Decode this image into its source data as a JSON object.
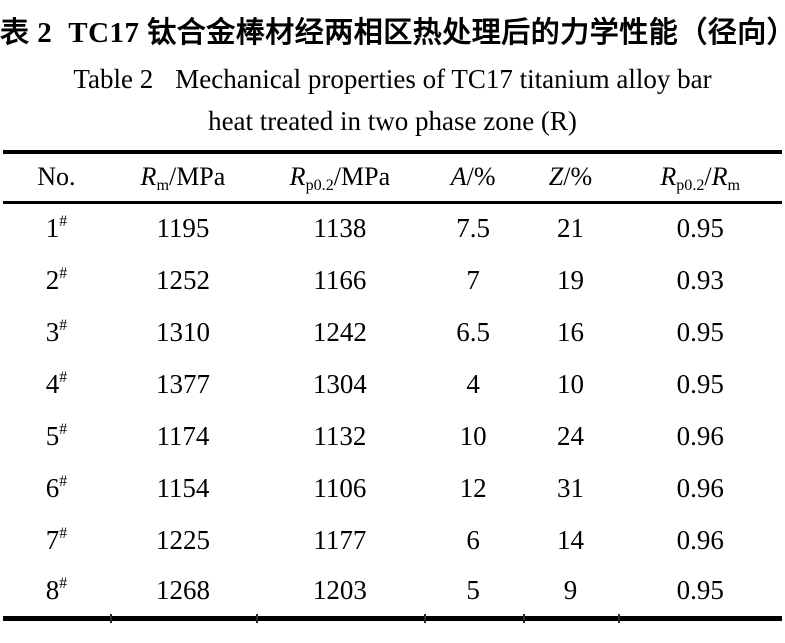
{
  "page": {
    "background_color": "#ffffff",
    "text_color": "#000000"
  },
  "caption": {
    "cn_label": "表 2",
    "cn_text": "TC17 钛合金棒材经两相区热处理后的力学性能（径向）",
    "en_label": "Table 2",
    "en_line1": "Mechanical properties of TC17 titanium alloy bar",
    "en_line2": "heat treated in two phase zone (R)"
  },
  "table": {
    "columns": [
      {
        "label": "No."
      },
      {
        "symbol": "R",
        "sub": "m",
        "suffix": "/MPa"
      },
      {
        "symbol": "R",
        "sub": "p0.2",
        "suffix": "/MPa"
      },
      {
        "symbol": "A",
        "suffix": "/%"
      },
      {
        "symbol": "Z",
        "suffix": "/%"
      },
      {
        "symbol": "R",
        "sub": "p0.2",
        "sep": "/",
        "symbol2": "R",
        "sub2": "m"
      }
    ],
    "rows": [
      {
        "no": "1",
        "mark": "#",
        "rm": "1195",
        "rp02": "1138",
        "a": "7.5",
        "z": "21",
        "ratio": "0.95"
      },
      {
        "no": "2",
        "mark": "#",
        "rm": "1252",
        "rp02": "1166",
        "a": "7",
        "z": "19",
        "ratio": "0.93"
      },
      {
        "no": "3",
        "mark": "#",
        "rm": "1310",
        "rp02": "1242",
        "a": "6.5",
        "z": "16",
        "ratio": "0.95"
      },
      {
        "no": "4",
        "mark": "#",
        "rm": "1377",
        "rp02": "1304",
        "a": "4",
        "z": "10",
        "ratio": "0.95"
      },
      {
        "no": "5",
        "mark": "#",
        "rm": "1174",
        "rp02": "1132",
        "a": "10",
        "z": "24",
        "ratio": "0.96"
      },
      {
        "no": "6",
        "mark": "#",
        "rm": "1154",
        "rp02": "1106",
        "a": "12",
        "z": "31",
        "ratio": "0.96"
      },
      {
        "no": "7",
        "mark": "#",
        "rm": "1225",
        "rp02": "1177",
        "a": "6",
        "z": "14",
        "ratio": "0.96"
      },
      {
        "no": "8",
        "mark": "#",
        "rm": "1268",
        "rp02": "1203",
        "a": "5",
        "z": "9",
        "ratio": "0.95"
      }
    ]
  },
  "chart_data": {
    "type": "table",
    "title": "Table 2 Mechanical properties of TC17 titanium alloy bar heat treated in two phase zone (R)",
    "title_cn": "表 2 TC17 钛合金棒材经两相区热处理后的力学性能（径向）",
    "columns": [
      "No.",
      "Rm/MPa",
      "Rp0.2/MPa",
      "A/%",
      "Z/%",
      "Rp0.2/Rm"
    ],
    "rows": [
      [
        "1#",
        1195,
        1138,
        7.5,
        21,
        0.95
      ],
      [
        "2#",
        1252,
        1166,
        7,
        19,
        0.93
      ],
      [
        "3#",
        1310,
        1242,
        6.5,
        16,
        0.95
      ],
      [
        "4#",
        1377,
        1304,
        4,
        10,
        0.95
      ],
      [
        "5#",
        1174,
        1132,
        10,
        24,
        0.96
      ],
      [
        "6#",
        1154,
        1106,
        12,
        31,
        0.96
      ],
      [
        "7#",
        1225,
        1177,
        6,
        14,
        0.96
      ],
      [
        "8#",
        1268,
        1203,
        5,
        9,
        0.95
      ]
    ]
  }
}
